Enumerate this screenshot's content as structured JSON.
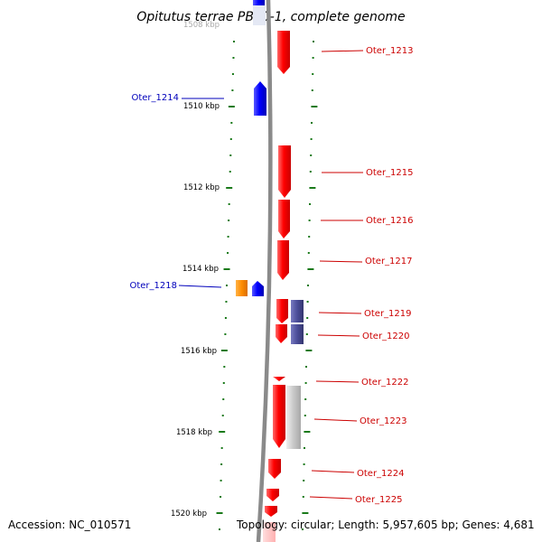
{
  "title": "Opitutus terrae PB90-1, complete genome",
  "footer": {
    "accession": "Accession: NC_010571",
    "topology": "Topology: circular; Length: 5,957,605 bp; Genes: 4,681"
  },
  "colors": {
    "forward_gene": "#0000ff",
    "reverse_gene": "#ff0000",
    "rna_gene": "#ff8c00",
    "purple_feature": "#4b4d99",
    "gray_feature": "#c8c8c8",
    "backbone": "#888888",
    "ticks": "#1a7a1a",
    "forward_label": "#0000bb",
    "reverse_label": "#cc0000"
  },
  "scale": {
    "kbp_labels": [
      "1508 kbp",
      "1510 kbp",
      "1512 kbp",
      "1514 kbp",
      "1516 kbp",
      "1518 kbp",
      "1520 kbp"
    ]
  },
  "genes": [
    {
      "label": "Oter_1213",
      "strand": "-"
    },
    {
      "label": "Oter_1214",
      "strand": "+"
    },
    {
      "label": "Oter_1215",
      "strand": "-"
    },
    {
      "label": "Oter_1216",
      "strand": "-"
    },
    {
      "label": "Oter_1217",
      "strand": "-"
    },
    {
      "label": "Oter_1218",
      "strand": "+"
    },
    {
      "label": "Oter_1219",
      "strand": "-"
    },
    {
      "label": "Oter_1220",
      "strand": "-"
    },
    {
      "label": "Oter_1222",
      "strand": "-"
    },
    {
      "label": "Oter_1223",
      "strand": "-"
    },
    {
      "label": "Oter_1224",
      "strand": "-"
    },
    {
      "label": "Oter_1225",
      "strand": "-"
    }
  ]
}
